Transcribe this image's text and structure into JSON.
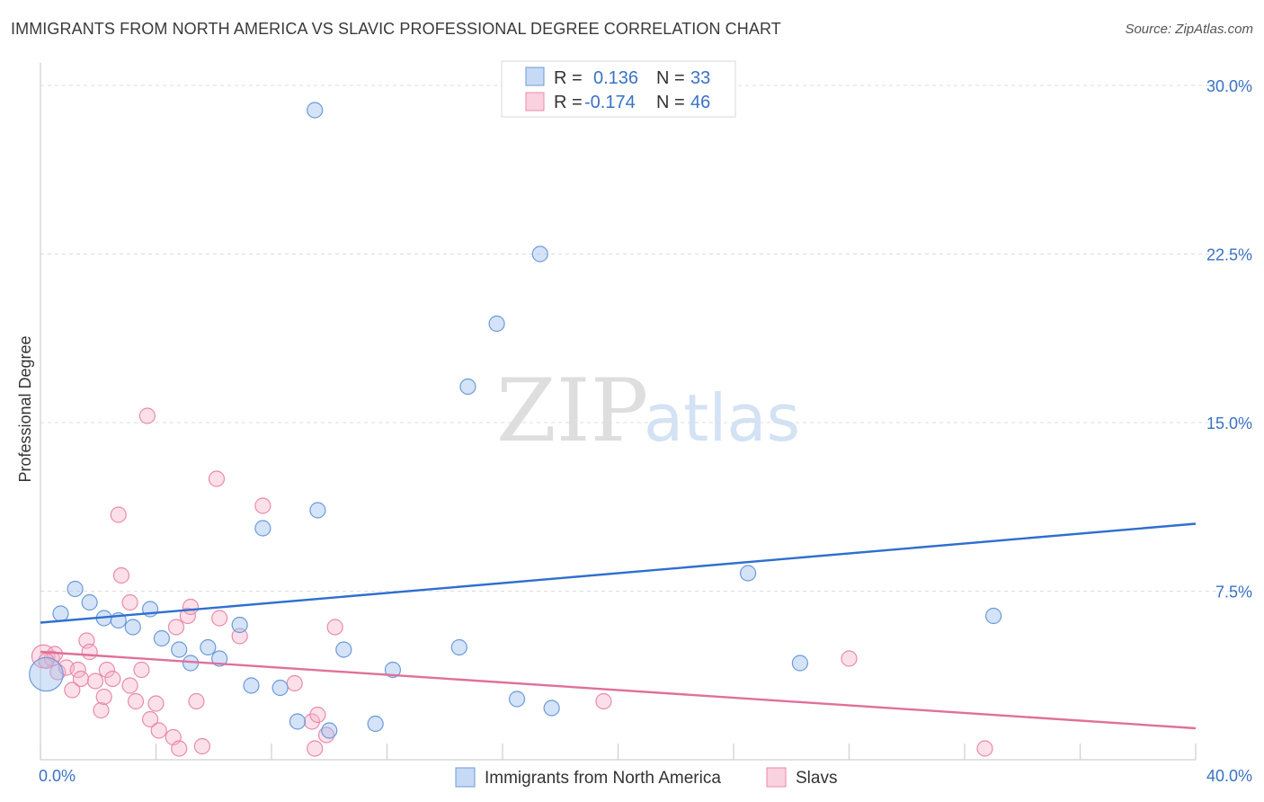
{
  "title": "IMMIGRANTS FROM NORTH AMERICA VS SLAVIC PROFESSIONAL DEGREE CORRELATION CHART",
  "source": "Source: ZipAtlas.com",
  "watermark": {
    "zip": "ZIP",
    "atlas": "atlas"
  },
  "colors": {
    "blue": "#3a72c4",
    "blue_line": "#2f6fcf",
    "pink": "#e06c95",
    "pink_line": "#e0709a"
  },
  "legend": {
    "rows": [
      {
        "r_label": "R =",
        "r_value": "0.136",
        "n_label": "N =",
        "n_value": "33"
      },
      {
        "r_label": "R =",
        "r_value": "-0.174",
        "n_label": "N =",
        "n_value": "46"
      }
    ]
  },
  "bottom_legend": [
    "Immigrants from North America",
    "Slavs"
  ],
  "chart_data": {
    "type": "scatter",
    "title": "IMMIGRANTS FROM NORTH AMERICA VS SLAVIC PROFESSIONAL DEGREE CORRELATION CHART",
    "xlabel": "",
    "ylabel": "Professional Degree",
    "xlim": [
      0,
      40
    ],
    "ylim": [
      0,
      31
    ],
    "x_tick_labels": [
      "0.0%",
      "40.0%"
    ],
    "y_ticks": [
      7.5,
      15.0,
      22.5,
      30.0
    ],
    "y_tick_labels": [
      "7.5%",
      "15.0%",
      "22.5%",
      "30.0%"
    ],
    "grid": true,
    "legend_position": "top-center",
    "series": [
      {
        "name": "Immigrants from North America",
        "r": 0.136,
        "n": 33,
        "trend": [
          [
            0,
            6.1
          ],
          [
            40,
            10.5
          ]
        ],
        "points": [
          [
            0.2,
            3.8,
            2.2
          ],
          [
            0.7,
            6.5,
            1
          ],
          [
            1.2,
            7.6,
            1
          ],
          [
            1.7,
            7.0,
            1
          ],
          [
            2.2,
            6.3,
            1
          ],
          [
            2.7,
            6.2,
            1
          ],
          [
            3.2,
            5.9,
            1
          ],
          [
            3.8,
            6.7,
            1
          ],
          [
            4.2,
            5.4,
            1
          ],
          [
            4.8,
            4.9,
            1
          ],
          [
            5.2,
            4.3,
            1
          ],
          [
            5.8,
            5.0,
            1
          ],
          [
            6.2,
            4.5,
            1
          ],
          [
            6.9,
            6.0,
            1
          ],
          [
            7.3,
            3.3,
            1
          ],
          [
            7.7,
            10.3,
            1
          ],
          [
            8.3,
            3.2,
            1
          ],
          [
            8.9,
            1.7,
            1
          ],
          [
            9.5,
            28.9,
            1
          ],
          [
            9.6,
            11.1,
            1
          ],
          [
            10.0,
            1.3,
            1
          ],
          [
            10.5,
            4.9,
            1
          ],
          [
            11.6,
            1.6,
            1
          ],
          [
            12.2,
            4.0,
            1
          ],
          [
            14.5,
            5.0,
            1
          ],
          [
            14.8,
            16.6,
            1
          ],
          [
            15.8,
            19.4,
            1
          ],
          [
            16.5,
            2.7,
            1
          ],
          [
            17.3,
            22.5,
            1
          ],
          [
            17.7,
            2.3,
            1
          ],
          [
            24.5,
            8.3,
            1
          ],
          [
            26.3,
            4.3,
            1
          ],
          [
            33.0,
            6.4,
            1
          ]
        ]
      },
      {
        "name": "Slavs",
        "r": -0.174,
        "n": 46,
        "trend": [
          [
            0,
            4.8
          ],
          [
            40,
            1.4
          ]
        ],
        "points": [
          [
            0.1,
            4.6,
            1.5
          ],
          [
            0.4,
            4.5,
            1
          ],
          [
            0.5,
            4.7,
            1
          ],
          [
            0.6,
            3.9,
            1
          ],
          [
            0.9,
            4.1,
            1
          ],
          [
            1.1,
            3.1,
            1
          ],
          [
            1.3,
            4.0,
            1
          ],
          [
            1.4,
            3.6,
            1
          ],
          [
            1.6,
            5.3,
            1
          ],
          [
            1.7,
            4.8,
            1
          ],
          [
            1.9,
            3.5,
            1
          ],
          [
            2.1,
            2.2,
            1
          ],
          [
            2.2,
            2.8,
            1
          ],
          [
            2.3,
            4.0,
            1
          ],
          [
            2.5,
            3.6,
            1
          ],
          [
            2.7,
            10.9,
            1
          ],
          [
            2.8,
            8.2,
            1
          ],
          [
            3.1,
            7.0,
            1
          ],
          [
            3.1,
            3.3,
            1
          ],
          [
            3.3,
            2.6,
            1
          ],
          [
            3.5,
            4.0,
            1
          ],
          [
            3.7,
            15.3,
            1
          ],
          [
            3.8,
            1.8,
            1
          ],
          [
            4.0,
            2.5,
            1
          ],
          [
            4.1,
            1.3,
            1
          ],
          [
            4.6,
            1.0,
            1
          ],
          [
            4.7,
            5.9,
            1
          ],
          [
            4.8,
            0.5,
            1
          ],
          [
            5.1,
            6.4,
            1
          ],
          [
            5.2,
            6.8,
            1
          ],
          [
            5.4,
            2.6,
            1
          ],
          [
            5.6,
            0.6,
            1
          ],
          [
            6.1,
            12.5,
            1
          ],
          [
            6.2,
            6.3,
            1
          ],
          [
            6.9,
            5.5,
            1
          ],
          [
            7.7,
            11.3,
            1
          ],
          [
            8.8,
            3.4,
            1
          ],
          [
            9.4,
            1.7,
            1
          ],
          [
            9.6,
            2.0,
            1
          ],
          [
            9.5,
            0.5,
            1
          ],
          [
            9.9,
            1.1,
            1
          ],
          [
            10.2,
            5.9,
            1
          ],
          [
            19.5,
            2.6,
            1
          ],
          [
            28.0,
            4.5,
            1
          ],
          [
            32.7,
            0.5,
            1
          ],
          [
            0.2,
            4.4,
            1
          ]
        ]
      }
    ]
  }
}
